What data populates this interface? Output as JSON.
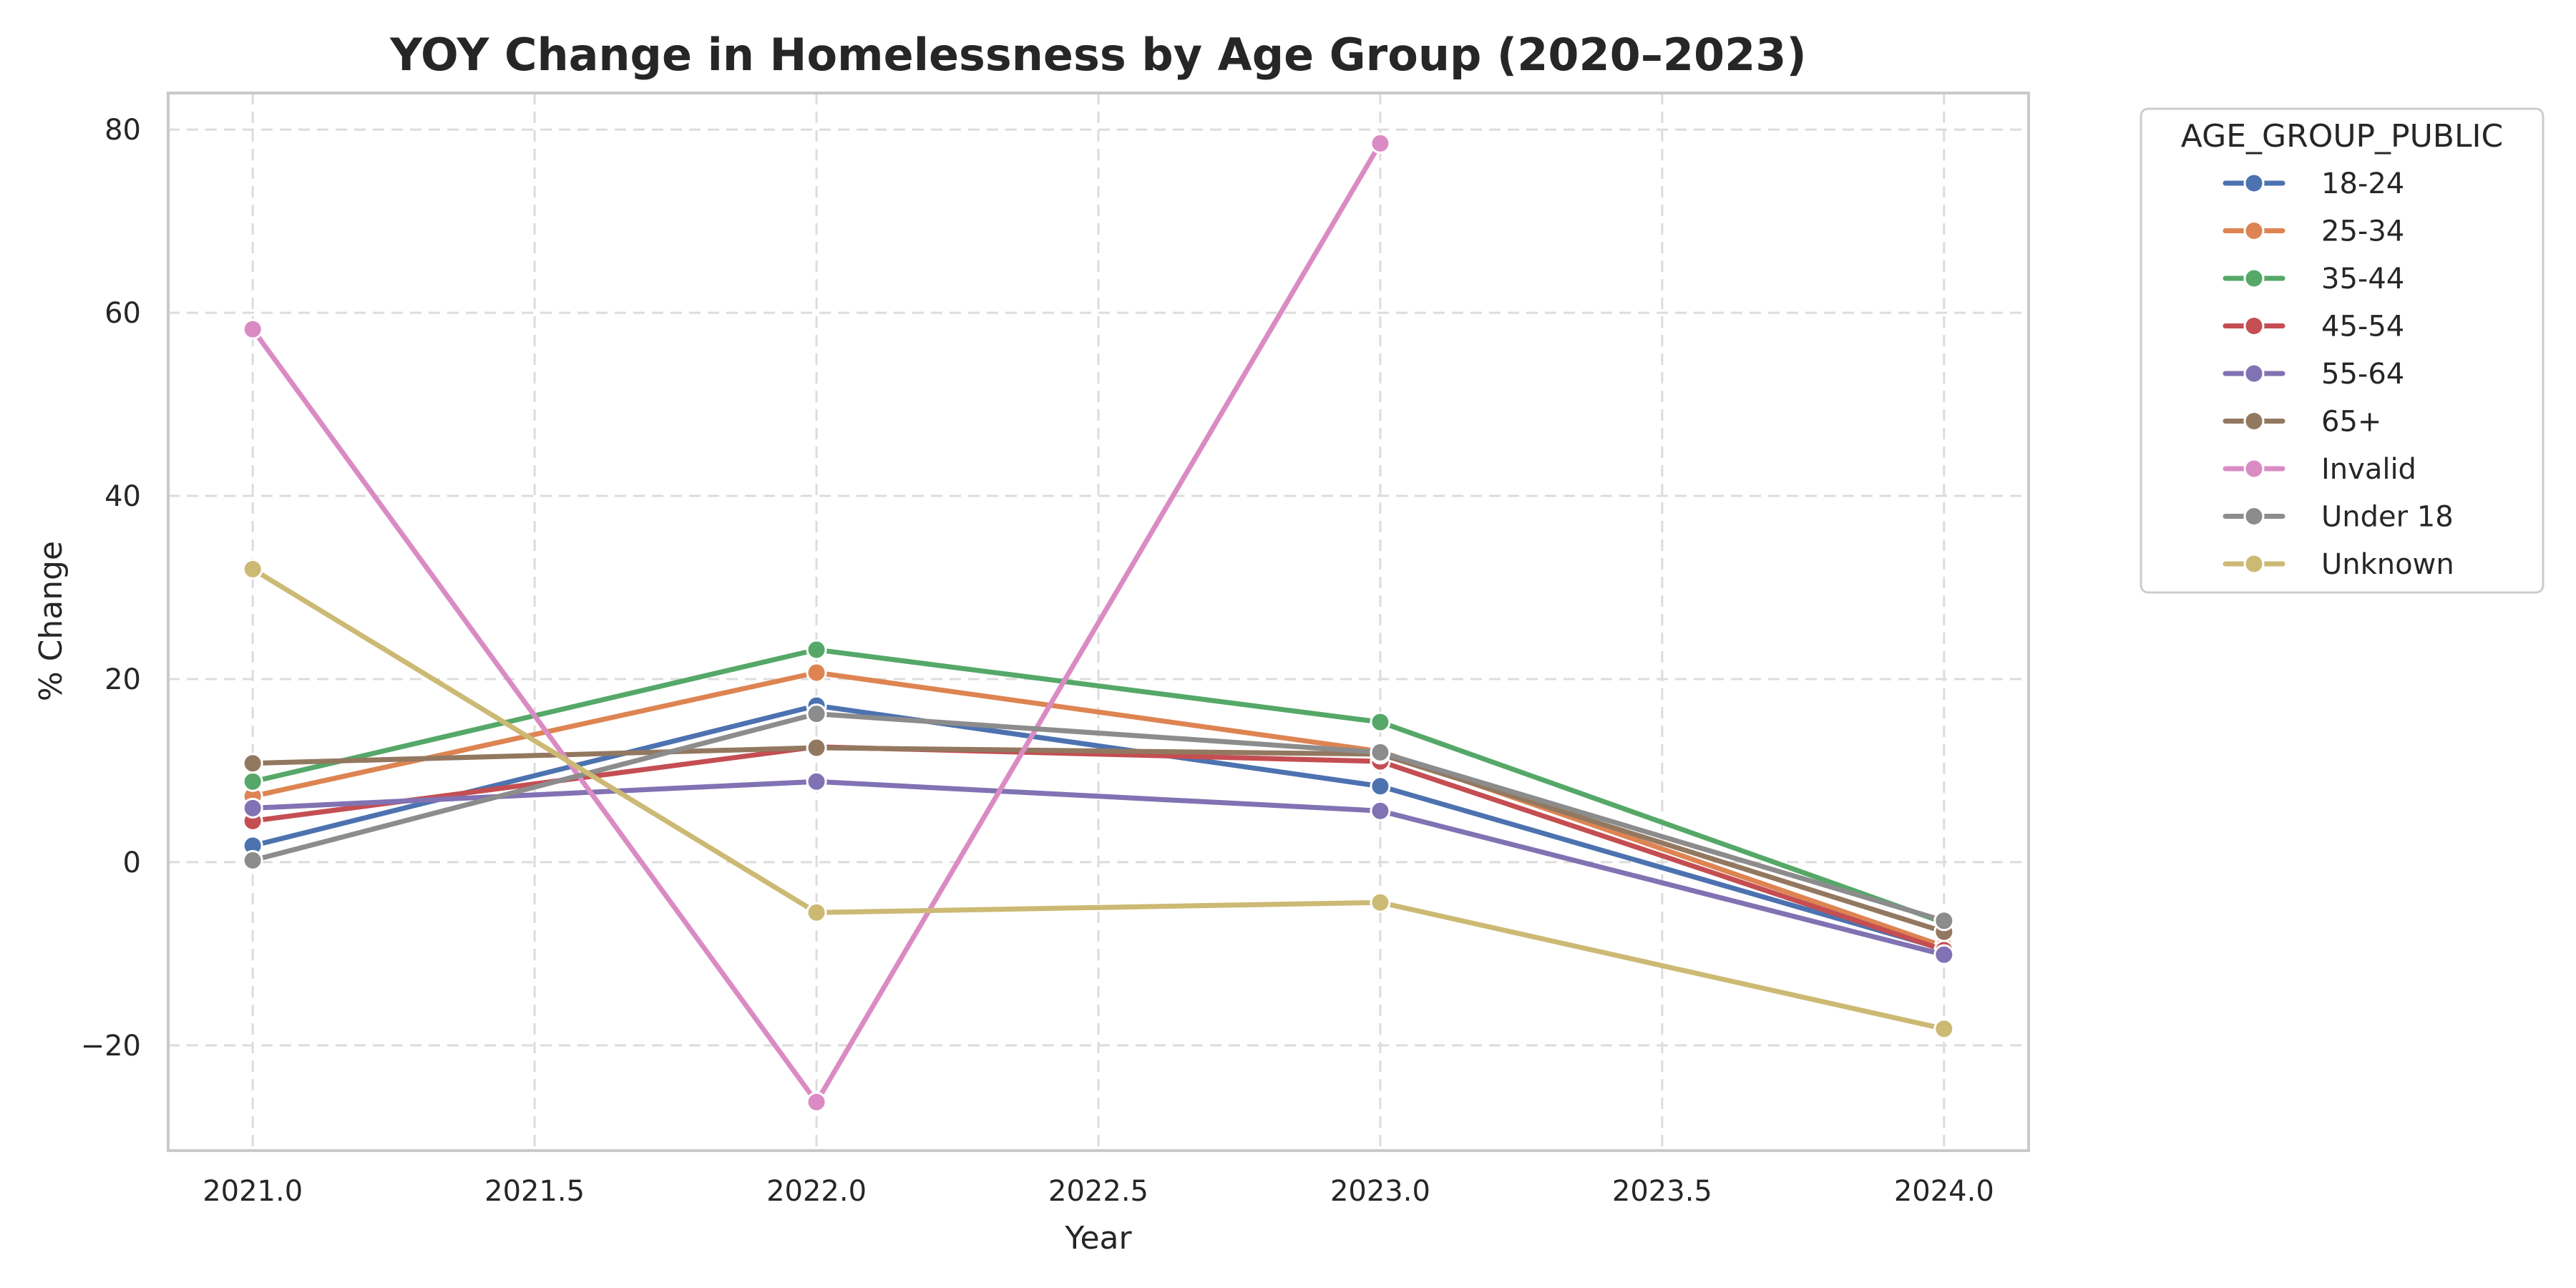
{
  "chart_data": {
    "type": "line",
    "title": "YOY Change in Homelessness by Age Group (2020–2023)",
    "xlabel": "Year",
    "ylabel": "% Change",
    "xlim": [
      2020.85,
      2024.15
    ],
    "ylim": [
      -31.5,
      84
    ],
    "xticks": [
      2021.0,
      2021.5,
      2022.0,
      2022.5,
      2023.0,
      2023.5,
      2024.0
    ],
    "xtick_labels": [
      "2021.0",
      "2021.5",
      "2022.0",
      "2022.5",
      "2023.0",
      "2023.5",
      "2024.0"
    ],
    "yticks": [
      -20,
      0,
      20,
      40,
      60,
      80
    ],
    "ytick_labels": [
      "−20",
      "0",
      "20",
      "40",
      "60",
      "80"
    ],
    "grid": true,
    "legend": {
      "title": "AGE_GROUP_PUBLIC",
      "placement": "outside-right-top"
    },
    "series": [
      {
        "name": "18-24",
        "color": "#4c72b0",
        "x": [
          2021,
          2022,
          2023,
          2024
        ],
        "y": [
          1.8,
          17.1,
          8.3,
          -9.5
        ]
      },
      {
        "name": "25-34",
        "color": "#dd8452",
        "x": [
          2021,
          2022,
          2023,
          2024
        ],
        "y": [
          7.2,
          20.7,
          12.1,
          -9.2
        ]
      },
      {
        "name": "35-44",
        "color": "#55a868",
        "x": [
          2021,
          2022,
          2023,
          2024
        ],
        "y": [
          8.8,
          23.2,
          15.3,
          -6.6
        ]
      },
      {
        "name": "45-54",
        "color": "#c44e52",
        "x": [
          2021,
          2022,
          2023,
          2024
        ],
        "y": [
          4.5,
          12.6,
          11.0,
          -9.6
        ]
      },
      {
        "name": "55-64",
        "color": "#8172b3",
        "x": [
          2021,
          2022,
          2023,
          2024
        ],
        "y": [
          5.9,
          8.8,
          5.6,
          -10.1
        ]
      },
      {
        "name": "65+",
        "color": "#937860",
        "x": [
          2021,
          2022,
          2023,
          2024
        ],
        "y": [
          10.8,
          12.5,
          11.8,
          -7.6
        ]
      },
      {
        "name": "Invalid",
        "color": "#da8bc3",
        "x": [
          2021,
          2022,
          2023
        ],
        "y": [
          58.2,
          -26.2,
          78.5
        ]
      },
      {
        "name": "Under 18",
        "color": "#8c8c8c",
        "x": [
          2021,
          2022,
          2023,
          2024
        ],
        "y": [
          0.2,
          16.2,
          12.0,
          -6.4
        ]
      },
      {
        "name": "Unknown",
        "color": "#ccb974",
        "x": [
          2021,
          2022,
          2023,
          2024
        ],
        "y": [
          32.0,
          -5.5,
          -4.4,
          -18.2
        ]
      }
    ]
  }
}
